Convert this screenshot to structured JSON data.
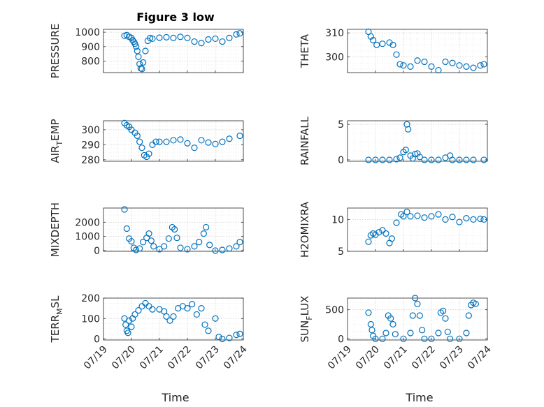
{
  "figure": {
    "title": "Figure 3 low",
    "colors": {
      "marker": "#0072BD",
      "axis": "#262626",
      "grid": "#d0d0d0"
    }
  },
  "chart_data": [
    {
      "type": "scatter",
      "id": "pressure",
      "title": "Figure 3 low",
      "ylabel": "PRESSURE",
      "xlabel": "",
      "xlim": [
        "07/19",
        "07/24"
      ],
      "ylim": [
        720,
        1020
      ],
      "yticks": [
        "800",
        "900",
        "1000"
      ],
      "ytick_values": [
        800,
        900,
        1000
      ],
      "xticks": [],
      "grid": true,
      "points": [
        [
          "07/19 18:00",
          975
        ],
        [
          "07/19 20:00",
          980
        ],
        [
          "07/19 22:00",
          968
        ],
        [
          "07/20 00:00",
          960
        ],
        [
          "07/20 01:00",
          945
        ],
        [
          "07/20 02:00",
          935
        ],
        [
          "07/20 03:00",
          920
        ],
        [
          "07/20 04:00",
          900
        ],
        [
          "07/20 05:00",
          870
        ],
        [
          "07/20 06:00",
          830
        ],
        [
          "07/20 07:00",
          780
        ],
        [
          "07/20 08:00",
          750
        ],
        [
          "07/20 09:00",
          745
        ],
        [
          "07/20 10:00",
          790
        ],
        [
          "07/20 12:00",
          870
        ],
        [
          "07/20 14:00",
          940
        ],
        [
          "07/20 16:00",
          960
        ],
        [
          "07/20 18:00",
          955
        ],
        [
          "07/21 00:00",
          962
        ],
        [
          "07/21 06:00",
          965
        ],
        [
          "07/21 12:00",
          960
        ],
        [
          "07/21 18:00",
          968
        ],
        [
          "07/22 00:00",
          960
        ],
        [
          "07/22 06:00",
          935
        ],
        [
          "07/22 12:00",
          925
        ],
        [
          "07/22 18:00",
          950
        ],
        [
          "07/23 00:00",
          955
        ],
        [
          "07/23 06:00",
          935
        ],
        [
          "07/23 12:00",
          960
        ],
        [
          "07/23 18:00",
          985
        ],
        [
          "07/23 21:00",
          992
        ]
      ]
    },
    {
      "type": "scatter",
      "id": "theta",
      "ylabel": "THETA",
      "xlabel": "",
      "xlim": [
        "07/19",
        "07/24"
      ],
      "ylim": [
        293.5,
        311.5
      ],
      "yticks": [
        "300",
        "310"
      ],
      "ytick_values": [
        300,
        310
      ],
      "xticks": [],
      "grid": true,
      "points": [
        [
          "07/19 18:00",
          310.5
        ],
        [
          "07/19 20:00",
          308.5
        ],
        [
          "07/19 22:00",
          307
        ],
        [
          "07/20 01:00",
          305
        ],
        [
          "07/20 06:00",
          305.5
        ],
        [
          "07/20 12:00",
          306
        ],
        [
          "07/20 15:00",
          305
        ],
        [
          "07/20 18:00",
          301
        ],
        [
          "07/20 21:00",
          297
        ],
        [
          "07/21 00:00",
          296.5
        ],
        [
          "07/21 06:00",
          296
        ],
        [
          "07/21 12:00",
          298.5
        ],
        [
          "07/21 18:00",
          298
        ],
        [
          "07/22 00:00",
          296
        ],
        [
          "07/22 06:00",
          294.5
        ],
        [
          "07/22 12:00",
          298
        ],
        [
          "07/22 18:00",
          297.5
        ],
        [
          "07/23 00:00",
          296.5
        ],
        [
          "07/23 06:00",
          296
        ],
        [
          "07/23 12:00",
          295.5
        ],
        [
          "07/23 18:00",
          296.5
        ],
        [
          "07/23 21:00",
          297
        ]
      ]
    },
    {
      "type": "scatter",
      "id": "air_temp",
      "ylabel": "AIR_TEMP",
      "xlabel": "",
      "xlim": [
        "07/19",
        "07/24"
      ],
      "ylim": [
        279,
        306
      ],
      "yticks": [
        "280",
        "290",
        "300"
      ],
      "ytick_values": [
        280,
        290,
        300
      ],
      "xticks": [],
      "grid": true,
      "points": [
        [
          "07/19 18:00",
          304.5
        ],
        [
          "07/19 20:00",
          303
        ],
        [
          "07/19 22:00",
          302
        ],
        [
          "07/20 00:00",
          300
        ],
        [
          "07/20 03:00",
          298
        ],
        [
          "07/20 05:00",
          296
        ],
        [
          "07/20 07:00",
          292
        ],
        [
          "07/20 09:00",
          288
        ],
        [
          "07/20 11:00",
          283
        ],
        [
          "07/20 13:00",
          282
        ],
        [
          "07/20 15:00",
          284
        ],
        [
          "07/20 18:00",
          290
        ],
        [
          "07/20 21:00",
          292
        ],
        [
          "07/21 00:00",
          292
        ],
        [
          "07/21 06:00",
          292
        ],
        [
          "07/21 12:00",
          293
        ],
        [
          "07/21 18:00",
          293.5
        ],
        [
          "07/22 00:00",
          291
        ],
        [
          "07/22 06:00",
          288
        ],
        [
          "07/22 12:00",
          293
        ],
        [
          "07/22 18:00",
          291.5
        ],
        [
          "07/23 00:00",
          290.5
        ],
        [
          "07/23 06:00",
          292
        ],
        [
          "07/23 12:00",
          294
        ],
        [
          "07/23 21:00",
          296
        ]
      ]
    },
    {
      "type": "scatter",
      "id": "rainfall",
      "ylabel": "RAINFALL",
      "xlabel": "",
      "xlim": [
        "07/19",
        "07/24"
      ],
      "ylim": [
        -0.2,
        5.5
      ],
      "yticks": [
        "0",
        "5"
      ],
      "ytick_values": [
        0,
        5
      ],
      "xticks": [],
      "grid": true,
      "points": [
        [
          "07/19 18:00",
          0
        ],
        [
          "07/20 00:00",
          0
        ],
        [
          "07/20 06:00",
          0
        ],
        [
          "07/20 12:00",
          0
        ],
        [
          "07/20 18:00",
          0.1
        ],
        [
          "07/20 21:00",
          0.3
        ],
        [
          "07/21 00:00",
          1.1
        ],
        [
          "07/21 02:00",
          1.4
        ],
        [
          "07/21 03:00",
          5.0
        ],
        [
          "07/21 04:00",
          4.3
        ],
        [
          "07/21 06:00",
          0.6
        ],
        [
          "07/21 08:00",
          0.2
        ],
        [
          "07/21 10:00",
          0.8
        ],
        [
          "07/21 12:00",
          0.9
        ],
        [
          "07/21 14:00",
          0.4
        ],
        [
          "07/21 18:00",
          0
        ],
        [
          "07/22 00:00",
          0
        ],
        [
          "07/22 06:00",
          0
        ],
        [
          "07/22 12:00",
          0.3
        ],
        [
          "07/22 16:00",
          0.6
        ],
        [
          "07/22 18:00",
          0
        ],
        [
          "07/23 00:00",
          0
        ],
        [
          "07/23 06:00",
          0
        ],
        [
          "07/23 12:00",
          0
        ],
        [
          "07/23 21:00",
          0
        ]
      ]
    },
    {
      "type": "scatter",
      "id": "mixdepth",
      "ylabel": "MIXDEPTH",
      "xlabel": "",
      "xlim": [
        "07/19",
        "07/24"
      ],
      "ylim": [
        -50,
        3000
      ],
      "yticks": [
        "0",
        "1000",
        "2000"
      ],
      "ytick_values": [
        0,
        1000,
        2000
      ],
      "xticks": [],
      "grid": true,
      "points": [
        [
          "07/19 18:00",
          2900
        ],
        [
          "07/19 20:00",
          1550
        ],
        [
          "07/19 22:00",
          850
        ],
        [
          "07/20 00:00",
          650
        ],
        [
          "07/20 02:00",
          200
        ],
        [
          "07/20 04:00",
          50
        ],
        [
          "07/20 07:00",
          150
        ],
        [
          "07/20 10:00",
          600
        ],
        [
          "07/20 13:00",
          900
        ],
        [
          "07/20 15:00",
          1200
        ],
        [
          "07/20 17:00",
          700
        ],
        [
          "07/20 19:00",
          300
        ],
        [
          "07/21 00:00",
          100
        ],
        [
          "07/21 04:00",
          300
        ],
        [
          "07/21 08:00",
          850
        ],
        [
          "07/21 11:00",
          1650
        ],
        [
          "07/21 13:00",
          1500
        ],
        [
          "07/21 15:00",
          900
        ],
        [
          "07/21 18:00",
          200
        ],
        [
          "07/22 00:00",
          100
        ],
        [
          "07/22 06:00",
          300
        ],
        [
          "07/22 10:00",
          600
        ],
        [
          "07/22 14:00",
          1200
        ],
        [
          "07/22 16:00",
          1650
        ],
        [
          "07/22 19:00",
          400
        ],
        [
          "07/23 00:00",
          0
        ],
        [
          "07/23 06:00",
          50
        ],
        [
          "07/23 12:00",
          150
        ],
        [
          "07/23 18:00",
          300
        ],
        [
          "07/23 21:00",
          600
        ]
      ]
    },
    {
      "type": "scatter",
      "id": "h2omixra",
      "ylabel": "H2OMIXRA",
      "xlabel": "",
      "xlim": [
        "07/19",
        "07/24"
      ],
      "ylim": [
        5,
        11.8
      ],
      "yticks": [
        "5",
        "10"
      ],
      "ytick_values": [
        5,
        10
      ],
      "xticks": [],
      "grid": true,
      "points": [
        [
          "07/19 18:00",
          6.5
        ],
        [
          "07/19 20:00",
          7.5
        ],
        [
          "07/19 22:00",
          7.8
        ],
        [
          "07/20 00:00",
          7.6
        ],
        [
          "07/20 03:00",
          8.0
        ],
        [
          "07/20 06:00",
          8.3
        ],
        [
          "07/20 09:00",
          7.8
        ],
        [
          "07/20 12:00",
          6.3
        ],
        [
          "07/20 14:00",
          7.0
        ],
        [
          "07/20 18:00",
          9.5
        ],
        [
          "07/20 22:00",
          10.8
        ],
        [
          "07/21 00:00",
          10.5
        ],
        [
          "07/21 03:00",
          11.2
        ],
        [
          "07/21 06:00",
          10.5
        ],
        [
          "07/21 12:00",
          10.6
        ],
        [
          "07/21 18:00",
          10.3
        ],
        [
          "07/22 00:00",
          10.5
        ],
        [
          "07/22 06:00",
          10.8
        ],
        [
          "07/22 12:00",
          10.0
        ],
        [
          "07/22 18:00",
          10.4
        ],
        [
          "07/23 00:00",
          9.6
        ],
        [
          "07/23 06:00",
          10.2
        ],
        [
          "07/23 12:00",
          10.0
        ],
        [
          "07/23 18:00",
          10.1
        ],
        [
          "07/23 21:00",
          10.0
        ]
      ]
    },
    {
      "type": "scatter",
      "id": "terr_msl",
      "ylabel": "TERR_MSL",
      "xlabel": "Time",
      "xlim": [
        "07/19",
        "07/24"
      ],
      "ylim": [
        -5,
        200
      ],
      "yticks": [
        "0",
        "100",
        "200"
      ],
      "ytick_values": [
        0,
        100,
        200
      ],
      "xticks": [
        "07/19",
        "07/20",
        "07/21",
        "07/22",
        "07/23",
        "07/24"
      ],
      "grid": true,
      "points": [
        [
          "07/19 18:00",
          100
        ],
        [
          "07/19 19:00",
          70
        ],
        [
          "07/19 20:00",
          40
        ],
        [
          "07/19 21:00",
          30
        ],
        [
          "07/19 22:00",
          90
        ],
        [
          "07/20 00:00",
          60
        ],
        [
          "07/20 01:00",
          100
        ],
        [
          "07/20 03:00",
          120
        ],
        [
          "07/20 06:00",
          140
        ],
        [
          "07/20 09:00",
          160
        ],
        [
          "07/20 12:00",
          175
        ],
        [
          "07/20 15:00",
          160
        ],
        [
          "07/20 18:00",
          145
        ],
        [
          "07/21 00:00",
          145
        ],
        [
          "07/21 04:00",
          135
        ],
        [
          "07/21 06:00",
          110
        ],
        [
          "07/21 09:00",
          90
        ],
        [
          "07/21 12:00",
          110
        ],
        [
          "07/21 16:00",
          150
        ],
        [
          "07/21 20:00",
          160
        ],
        [
          "07/22 00:00",
          150
        ],
        [
          "07/22 04:00",
          170
        ],
        [
          "07/22 08:00",
          120
        ],
        [
          "07/22 12:00",
          150
        ],
        [
          "07/22 15:00",
          70
        ],
        [
          "07/22 18:00",
          40
        ],
        [
          "07/23 00:00",
          100
        ],
        [
          "07/23 03:00",
          10
        ],
        [
          "07/23 06:00",
          0
        ],
        [
          "07/23 12:00",
          5
        ],
        [
          "07/23 18:00",
          20
        ],
        [
          "07/23 21:00",
          25
        ]
      ]
    },
    {
      "type": "scatter",
      "id": "sun_flux",
      "ylabel": "SUN_FLUX",
      "xlabel": "Time",
      "xlim": [
        "07/19",
        "07/24"
      ],
      "ylim": [
        -20,
        700
      ],
      "yticks": [
        "0",
        "500"
      ],
      "ytick_values": [
        0,
        500
      ],
      "xticks": [
        "07/19",
        "07/20",
        "07/21",
        "07/22",
        "07/23",
        "07/24"
      ],
      "grid": true,
      "points": [
        [
          "07/19 18:00",
          450
        ],
        [
          "07/19 20:00",
          250
        ],
        [
          "07/19 21:00",
          150
        ],
        [
          "07/19 22:00",
          50
        ],
        [
          "07/20 00:00",
          0
        ],
        [
          "07/20 06:00",
          0
        ],
        [
          "07/20 09:00",
          100
        ],
        [
          "07/20 11:00",
          400
        ],
        [
          "07/20 13:00",
          350
        ],
        [
          "07/20 15:00",
          250
        ],
        [
          "07/20 17:00",
          80
        ],
        [
          "07/21 00:00",
          0
        ],
        [
          "07/21 06:00",
          100
        ],
        [
          "07/21 08:00",
          400
        ],
        [
          "07/21 10:00",
          700
        ],
        [
          "07/21 12:00",
          600
        ],
        [
          "07/21 14:00",
          400
        ],
        [
          "07/21 16:00",
          150
        ],
        [
          "07/21 18:00",
          0
        ],
        [
          "07/22 00:00",
          0
        ],
        [
          "07/22 06:00",
          100
        ],
        [
          "07/22 08:00",
          450
        ],
        [
          "07/22 10:00",
          480
        ],
        [
          "07/22 12:00",
          350
        ],
        [
          "07/22 14:00",
          120
        ],
        [
          "07/22 16:00",
          0
        ],
        [
          "07/23 00:00",
          0
        ],
        [
          "07/23 06:00",
          100
        ],
        [
          "07/23 08:00",
          400
        ],
        [
          "07/23 10:00",
          580
        ],
        [
          "07/23 12:00",
          620
        ],
        [
          "07/23 14:00",
          600
        ]
      ]
    }
  ]
}
